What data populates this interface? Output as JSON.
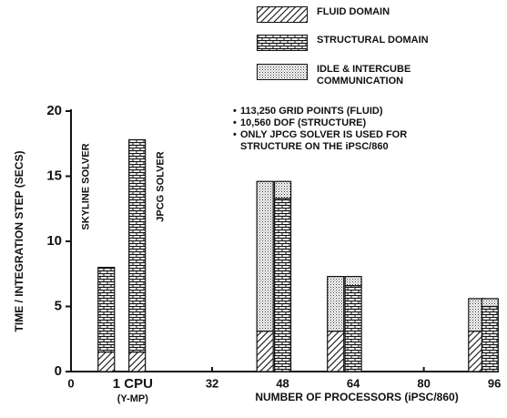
{
  "chart_data": {
    "type": "bar",
    "stacked": true,
    "y_label": "TIME / INTEGRATION STEP (SECS)",
    "x_label": "NUMBER OF PROCESSORS (iPSC/860)",
    "cpu_sublabel": "(Y-MP)",
    "ylim": [
      0,
      20
    ],
    "yticks": [
      0,
      5,
      10,
      15,
      20
    ],
    "xlim": [
      0,
      97
    ],
    "xticks": [
      0,
      {
        "value": 14,
        "label": "1 CPU"
      },
      32,
      48,
      64,
      80,
      96
    ],
    "x": [
      8,
      15,
      44,
      48,
      60,
      64,
      92,
      95
    ],
    "series": [
      {
        "name": "FLUID DOMAIN",
        "color": "#111",
        "pattern": "hatch",
        "values": [
          1.5,
          1.5,
          3.1,
          null,
          3.1,
          null,
          3.1,
          null
        ]
      },
      {
        "name": "STRUCTURAL DOMAIN",
        "color": "#111",
        "pattern": "brick",
        "values": [
          6.5,
          16.3,
          null,
          13.3,
          null,
          6.6,
          null,
          5.0
        ]
      },
      {
        "name": "IDLE & INTERCUBE COMMUNICATION",
        "color": "#111",
        "pattern": "dots",
        "values": [
          null,
          null,
          11.5,
          1.3,
          4.2,
          0.7,
          2.5,
          0.6
        ]
      }
    ],
    "bar_labels": [
      {
        "bar": 0,
        "text": "SKYLINE SOLVER"
      },
      {
        "bar": 1,
        "text": "JPCG SOLVER"
      }
    ],
    "notes": [
      "113,250 GRID POINTS (FLUID)",
      "10,560 DOF (STRUCTURE)",
      "ONLY JPCG SOLVER IS USED FOR STRUCTURE ON THE iPSC/860"
    ]
  }
}
